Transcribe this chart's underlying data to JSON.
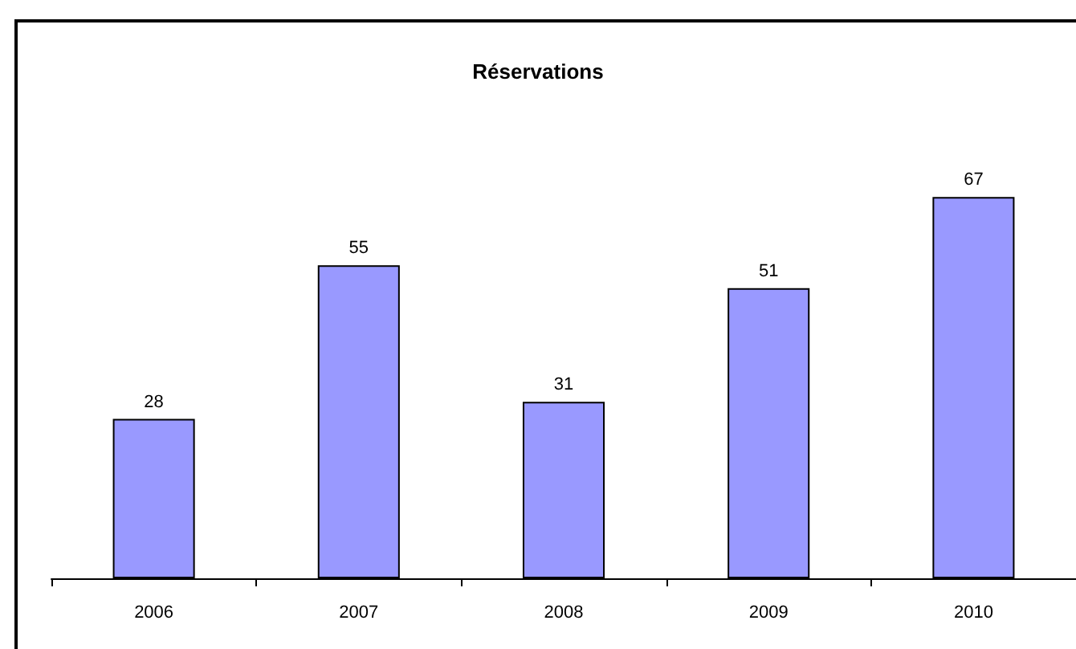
{
  "chart_data": {
    "type": "bar",
    "title": "Réservations",
    "categories": [
      "2006",
      "2007",
      "2008",
      "2009",
      "2010"
    ],
    "values": [
      28,
      55,
      31,
      51,
      67
    ],
    "color": "#9999ff",
    "data_labels": true,
    "tick_labels": "x"
  }
}
